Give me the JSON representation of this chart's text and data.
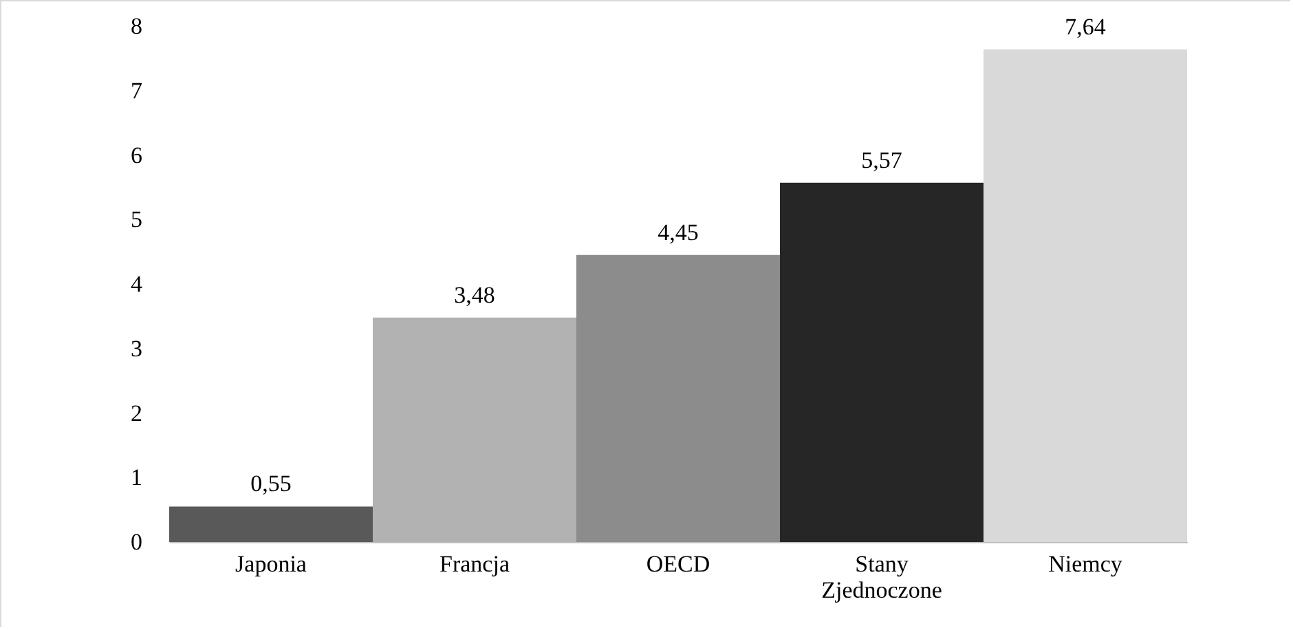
{
  "chart_data": {
    "type": "bar",
    "categories": [
      "Japonia",
      "Francja",
      "OECD",
      "Stany Zjednoczone",
      "Niemcy"
    ],
    "values": [
      0.55,
      3.48,
      4.45,
      5.57,
      7.64
    ],
    "colors": [
      "#595959",
      "#b2b2b2",
      "#8c8c8c",
      "#262626",
      "#d9d9d9"
    ],
    "value_labels": [
      "0,55",
      "3,48",
      "4,45",
      "5,57",
      "7,64"
    ],
    "ylim": [
      0,
      8
    ],
    "yticks": [
      0,
      1,
      2,
      3,
      4,
      5,
      6,
      7,
      8
    ],
    "grid": false
  }
}
